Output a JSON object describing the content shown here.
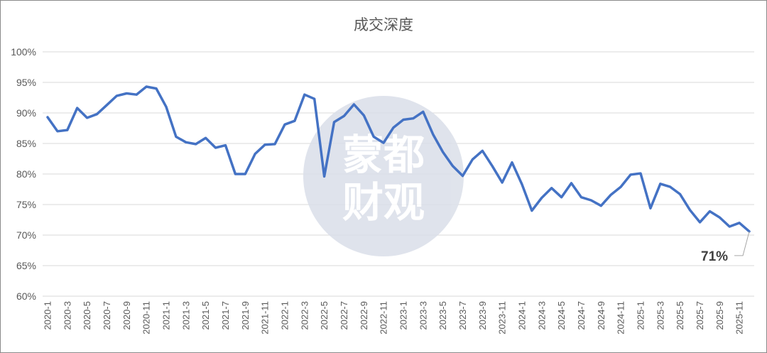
{
  "chart_data": {
    "type": "line",
    "title": "成交深度",
    "y_tick_labels": [
      "60%",
      "65%",
      "70%",
      "75%",
      "80%",
      "85%",
      "90%",
      "95%",
      "100%"
    ],
    "ylim": [
      60,
      100
    ],
    "grid": true,
    "legend": "none",
    "x_tick_labels": [
      "2020-1",
      "2020-3",
      "2020-5",
      "2020-7",
      "2020-9",
      "2020-11",
      "2021-1",
      "2021-3",
      "2021-5",
      "2021-7",
      "2021-9",
      "2021-11",
      "2022-1",
      "2022-3",
      "2022-5",
      "2022-7",
      "2022-9",
      "2022-11",
      "2023-1",
      "2023-3",
      "2023-5",
      "2023-7",
      "2023-9",
      "2023-11",
      "2024-1",
      "2024-3",
      "2024-5",
      "2024-7",
      "2024-9",
      "2024-11",
      "2025-1",
      "2025-3",
      "2025-5",
      "2025-7",
      "2025-9",
      "2025-11"
    ],
    "x": [
      "2020-1",
      "2020-2",
      "2020-3",
      "2020-4",
      "2020-5",
      "2020-6",
      "2020-7",
      "2020-8",
      "2020-9",
      "2020-10",
      "2020-11",
      "2020-12",
      "2021-1",
      "2021-2",
      "2021-3",
      "2021-4",
      "2021-5",
      "2021-6",
      "2021-7",
      "2021-8",
      "2021-9",
      "2021-10",
      "2021-11",
      "2021-12",
      "2022-1",
      "2022-2",
      "2022-3",
      "2022-4",
      "2022-5",
      "2022-6",
      "2022-7",
      "2022-8",
      "2022-9",
      "2022-10",
      "2022-11",
      "2022-12",
      "2023-1",
      "2023-2",
      "2023-3",
      "2023-4",
      "2023-5",
      "2023-6",
      "2023-7",
      "2023-8",
      "2023-9",
      "2023-10",
      "2023-11",
      "2023-12",
      "2024-1",
      "2024-2",
      "2024-3",
      "2024-4",
      "2024-5",
      "2024-6",
      "2024-7",
      "2024-8",
      "2024-9",
      "2024-10",
      "2024-11",
      "2024-12",
      "2025-1",
      "2025-2",
      "2025-3",
      "2025-4",
      "2025-5",
      "2025-6",
      "2025-7",
      "2025-8",
      "2025-9",
      "2025-10",
      "2025-11",
      "2025-12"
    ],
    "series": [
      {
        "values": [
          89.3,
          87.0,
          87.2,
          90.8,
          89.2,
          89.8,
          91.3,
          92.8,
          93.2,
          93.0,
          94.3,
          94.0,
          91.0,
          86.1,
          85.2,
          84.9,
          85.9,
          84.3,
          84.7,
          80.0,
          80.0,
          83.3,
          84.8,
          84.9,
          88.1,
          88.7,
          93.0,
          92.3,
          79.6,
          88.5,
          89.5,
          91.4,
          89.6,
          86.1,
          85.1,
          87.6,
          88.9,
          89.1,
          90.2,
          86.5,
          83.6,
          81.3,
          79.7,
          82.4,
          83.8,
          81.3,
          78.6,
          81.9,
          78.3,
          74.0,
          76.1,
          77.7,
          76.2,
          78.5,
          76.2,
          75.7,
          74.8,
          76.6,
          77.9,
          79.9,
          80.1,
          74.4,
          78.4,
          77.9,
          76.7,
          74.1,
          72.1,
          73.9,
          72.9,
          71.4,
          72.0,
          70.6
        ]
      }
    ],
    "color": "#4472c4",
    "annotation": {
      "text": "71%",
      "target": "2025-12"
    }
  },
  "watermark": {
    "line1": "蒙都",
    "line2": "财观"
  }
}
